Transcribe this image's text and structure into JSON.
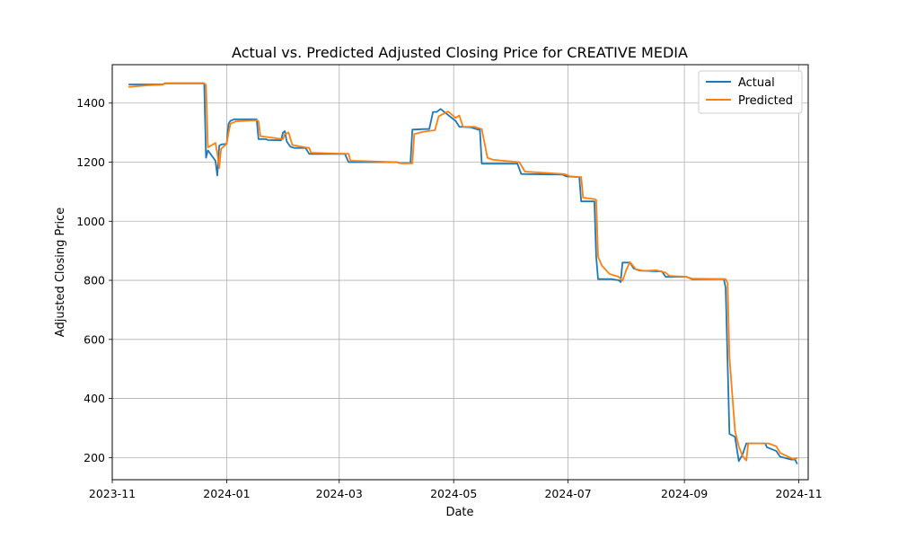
{
  "chart_data": {
    "type": "line",
    "title": "Actual vs. Predicted Adjusted Closing Price for CREATIVE MEDIA",
    "xlabel": "Date",
    "ylabel": "Adjusted Closing Price",
    "x_scale": "date",
    "xlim": [
      "2023-11-01",
      "2024-11-06"
    ],
    "ylim": [
      125,
      1530
    ],
    "x_ticks": [
      "2023-11",
      "2024-01",
      "2024-03",
      "2024-05",
      "2024-07",
      "2024-09",
      "2024-11"
    ],
    "y_ticks": [
      200,
      400,
      600,
      800,
      1000,
      1200,
      1400
    ],
    "grid": true,
    "legend_position": "top-right",
    "colors": {
      "Actual": "#1f77b4",
      "Predicted": "#ff7f0e"
    },
    "series": [
      {
        "name": "Actual",
        "points": [
          [
            "2023-11-10",
            1463
          ],
          [
            "2023-11-28",
            1463
          ],
          [
            "2023-11-29",
            1467
          ],
          [
            "2023-12-20",
            1467
          ],
          [
            "2023-12-21",
            1215
          ],
          [
            "2023-12-22",
            1240
          ],
          [
            "2023-12-26",
            1205
          ],
          [
            "2023-12-27",
            1155
          ],
          [
            "2023-12-28",
            1255
          ],
          [
            "2023-12-29",
            1260
          ],
          [
            "2024-01-01",
            1262
          ],
          [
            "2024-01-02",
            1330
          ],
          [
            "2024-01-03",
            1340
          ],
          [
            "2024-01-05",
            1345
          ],
          [
            "2024-01-17",
            1345
          ],
          [
            "2024-01-18",
            1278
          ],
          [
            "2024-01-22",
            1278
          ],
          [
            "2024-01-23",
            1275
          ],
          [
            "2024-01-30",
            1274
          ],
          [
            "2024-01-31",
            1300
          ],
          [
            "2024-02-01",
            1305
          ],
          [
            "2024-02-02",
            1270
          ],
          [
            "2024-02-04",
            1252
          ],
          [
            "2024-02-06",
            1248
          ],
          [
            "2024-02-12",
            1248
          ],
          [
            "2024-02-14",
            1228
          ],
          [
            "2024-03-04",
            1228
          ],
          [
            "2024-03-06",
            1200
          ],
          [
            "2024-04-01",
            1200
          ],
          [
            "2024-04-02",
            1197
          ],
          [
            "2024-04-08",
            1197
          ],
          [
            "2024-04-09",
            1310
          ],
          [
            "2024-04-15",
            1312
          ],
          [
            "2024-04-18",
            1312
          ],
          [
            "2024-04-20",
            1370
          ],
          [
            "2024-04-22",
            1370
          ],
          [
            "2024-04-24",
            1380
          ],
          [
            "2024-04-28",
            1360
          ],
          [
            "2024-05-02",
            1340
          ],
          [
            "2024-05-04",
            1320
          ],
          [
            "2024-05-10",
            1318
          ],
          [
            "2024-05-14",
            1310
          ],
          [
            "2024-05-15",
            1310
          ],
          [
            "2024-05-16",
            1195
          ],
          [
            "2024-06-04",
            1195
          ],
          [
            "2024-06-06",
            1160
          ],
          [
            "2024-06-28",
            1158
          ],
          [
            "2024-06-30",
            1152
          ],
          [
            "2024-07-05",
            1150
          ],
          [
            "2024-07-07",
            1150
          ],
          [
            "2024-07-08",
            1067
          ],
          [
            "2024-07-14",
            1067
          ],
          [
            "2024-07-15",
            1067
          ],
          [
            "2024-07-16",
            880
          ],
          [
            "2024-07-17",
            804
          ],
          [
            "2024-07-24",
            804
          ],
          [
            "2024-07-28",
            800
          ],
          [
            "2024-07-29",
            794
          ],
          [
            "2024-07-30",
            860
          ],
          [
            "2024-08-03",
            860
          ],
          [
            "2024-08-05",
            840
          ],
          [
            "2024-08-08",
            833
          ],
          [
            "2024-08-20",
            830
          ],
          [
            "2024-08-22",
            812
          ],
          [
            "2024-09-02",
            812
          ],
          [
            "2024-09-05",
            804
          ],
          [
            "2024-09-20",
            804
          ],
          [
            "2024-09-22",
            804
          ],
          [
            "2024-09-23",
            775
          ],
          [
            "2024-09-25",
            280
          ],
          [
            "2024-09-28",
            270
          ],
          [
            "2024-09-30",
            188
          ],
          [
            "2024-10-02",
            210
          ],
          [
            "2024-10-04",
            248
          ],
          [
            "2024-10-14",
            248
          ],
          [
            "2024-10-15",
            235
          ],
          [
            "2024-10-20",
            222
          ],
          [
            "2024-10-22",
            203
          ],
          [
            "2024-10-28",
            193
          ],
          [
            "2024-10-30",
            193
          ],
          [
            "2024-10-31",
            180
          ]
        ]
      },
      {
        "name": "Predicted",
        "points": [
          [
            "2023-11-10",
            1455
          ],
          [
            "2023-11-20",
            1460
          ],
          [
            "2023-11-28",
            1462
          ],
          [
            "2023-11-29",
            1466
          ],
          [
            "2023-12-20",
            1466
          ],
          [
            "2023-12-21",
            1462
          ],
          [
            "2023-12-22",
            1250
          ],
          [
            "2023-12-26",
            1265
          ],
          [
            "2023-12-27",
            1230
          ],
          [
            "2023-12-28",
            1180
          ],
          [
            "2023-12-29",
            1245
          ],
          [
            "2024-01-01",
            1262
          ],
          [
            "2024-01-02",
            1300
          ],
          [
            "2024-01-03",
            1330
          ],
          [
            "2024-01-06",
            1338
          ],
          [
            "2024-01-17",
            1342
          ],
          [
            "2024-01-18",
            1338
          ],
          [
            "2024-01-19",
            1288
          ],
          [
            "2024-01-26",
            1282
          ],
          [
            "2024-01-31",
            1278
          ],
          [
            "2024-02-01",
            1295
          ],
          [
            "2024-02-03",
            1300
          ],
          [
            "2024-02-05",
            1258
          ],
          [
            "2024-02-12",
            1250
          ],
          [
            "2024-02-14",
            1248
          ],
          [
            "2024-02-15",
            1232
          ],
          [
            "2024-03-06",
            1228
          ],
          [
            "2024-03-07",
            1205
          ],
          [
            "2024-04-01",
            1200
          ],
          [
            "2024-04-03",
            1196
          ],
          [
            "2024-04-09",
            1196
          ],
          [
            "2024-04-10",
            1295
          ],
          [
            "2024-04-15",
            1303
          ],
          [
            "2024-04-21",
            1308
          ],
          [
            "2024-04-23",
            1355
          ],
          [
            "2024-04-28",
            1372
          ],
          [
            "2024-05-02",
            1350
          ],
          [
            "2024-05-04",
            1358
          ],
          [
            "2024-05-06",
            1320
          ],
          [
            "2024-05-12",
            1320
          ],
          [
            "2024-05-16",
            1312
          ],
          [
            "2024-05-19",
            1215
          ],
          [
            "2024-05-22",
            1208
          ],
          [
            "2024-06-05",
            1200
          ],
          [
            "2024-06-08",
            1168
          ],
          [
            "2024-06-28",
            1160
          ],
          [
            "2024-06-30",
            1158
          ],
          [
            "2024-07-02",
            1152
          ],
          [
            "2024-07-07",
            1150
          ],
          [
            "2024-07-08",
            1150
          ],
          [
            "2024-07-09",
            1080
          ],
          [
            "2024-07-15",
            1075
          ],
          [
            "2024-07-16",
            1072
          ],
          [
            "2024-07-17",
            880
          ],
          [
            "2024-07-19",
            850
          ],
          [
            "2024-07-23",
            822
          ],
          [
            "2024-07-28",
            812
          ],
          [
            "2024-07-30",
            798
          ],
          [
            "2024-08-01",
            835
          ],
          [
            "2024-08-03",
            862
          ],
          [
            "2024-08-06",
            838
          ],
          [
            "2024-08-10",
            832
          ],
          [
            "2024-08-17",
            834
          ],
          [
            "2024-08-22",
            826
          ],
          [
            "2024-08-24",
            815
          ],
          [
            "2024-09-02",
            812
          ],
          [
            "2024-09-05",
            806
          ],
          [
            "2024-09-22",
            804
          ],
          [
            "2024-09-23",
            804
          ],
          [
            "2024-09-24",
            790
          ],
          [
            "2024-09-25",
            540
          ],
          [
            "2024-09-28",
            290
          ],
          [
            "2024-09-30",
            238
          ],
          [
            "2024-10-02",
            205
          ],
          [
            "2024-10-04",
            190
          ],
          [
            "2024-10-05",
            248
          ],
          [
            "2024-10-16",
            248
          ],
          [
            "2024-10-20",
            238
          ],
          [
            "2024-10-22",
            216
          ],
          [
            "2024-10-29",
            195
          ],
          [
            "2024-10-31",
            198
          ]
        ]
      }
    ]
  }
}
